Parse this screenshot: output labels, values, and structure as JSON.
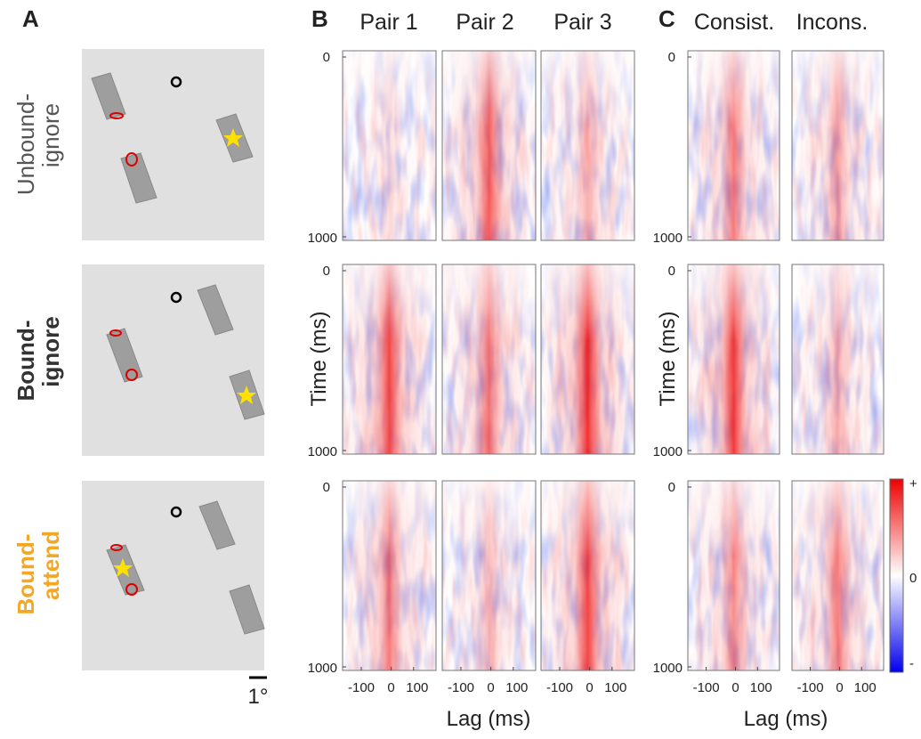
{
  "panel_labels": [
    "A",
    "B",
    "C"
  ],
  "conditions": [
    {
      "line1": "Unbound-",
      "line2": "ignore"
    },
    {
      "line1": "Bound-",
      "line2": "ignore"
    },
    {
      "line1": "Bound-",
      "line2": "attend"
    }
  ],
  "scale_bar": "1°",
  "panel_b": {
    "columns": [
      "Pair 1",
      "Pair 2",
      "Pair 3"
    ]
  },
  "panel_c": {
    "columns": [
      "Consist.",
      "Incons."
    ]
  },
  "time_axis": {
    "label": "Time (ms)",
    "ticks": [
      0,
      1000
    ]
  },
  "lag_axis": {
    "label": "Lag (ms)",
    "ticks": [
      -100,
      0,
      100
    ]
  },
  "colorbar": {
    "labels": [
      "+",
      "0",
      "-"
    ]
  }
}
